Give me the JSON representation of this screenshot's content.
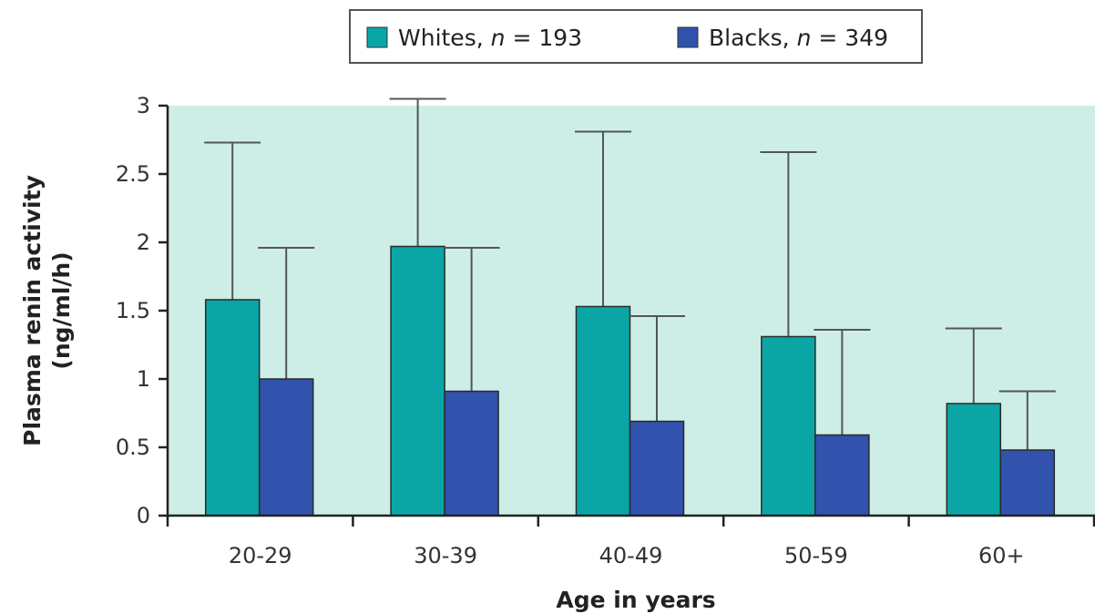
{
  "chart_data": {
    "type": "bar",
    "title": "",
    "xlabel": "Age in years",
    "ylabel_lines": [
      "Plasma renin activity",
      "(ng/ml/h)"
    ],
    "categories": [
      "20-29",
      "30-39",
      "40-49",
      "50-59",
      "60+"
    ],
    "ylim": [
      0,
      3
    ],
    "yticks": [
      0,
      0.5,
      1,
      1.5,
      2,
      2.5,
      3
    ],
    "ytick_labels": [
      "0",
      "0.5",
      "1",
      "1.5",
      "2",
      "2.5",
      "3"
    ],
    "grid": false,
    "legend_position": "top",
    "plot_background": "#cdeee6",
    "series": [
      {
        "name": "Whites",
        "n_label": "n",
        "n_value": "= 193",
        "color": "#0aa6a6",
        "values": [
          1.58,
          1.97,
          1.53,
          1.31,
          0.82
        ],
        "error_upper": [
          2.73,
          3.05,
          2.81,
          2.66,
          1.37
        ]
      },
      {
        "name": "Blacks",
        "n_label": "n",
        "n_value": "= 349",
        "color": "#3152ad",
        "values": [
          1.0,
          0.91,
          0.69,
          0.59,
          0.48
        ],
        "error_upper": [
          1.96,
          1.96,
          1.46,
          1.36,
          0.91
        ]
      }
    ]
  }
}
